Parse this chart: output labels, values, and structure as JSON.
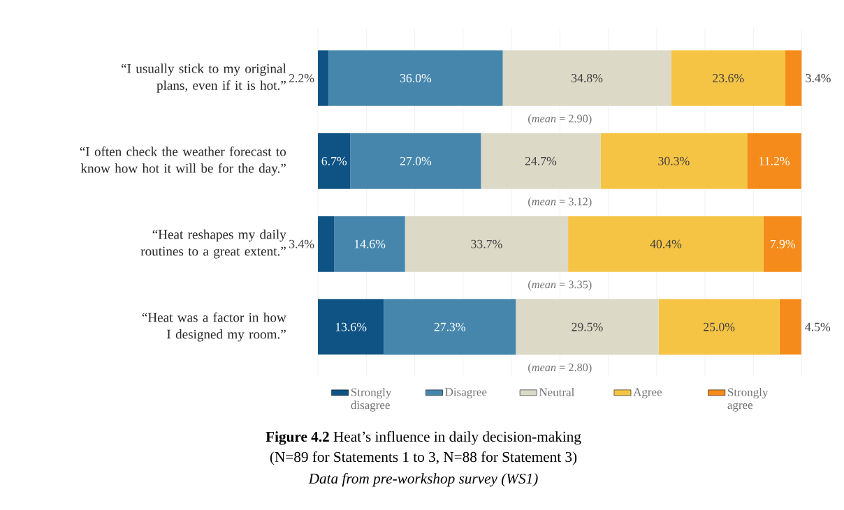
{
  "chart_data": {
    "type": "bar",
    "orientation": "horizontal",
    "stacked": true,
    "title": "**Figure 4.2** Heat’s influence in daily decision-making",
    "subtitle": "(N=89 for Statements 1 to 3, N=88 for Statement 3)",
    "categories": [
      "“I usually stick to my original plans, even if it is hot.”",
      "“I often check the weather forecast to know how hot it will be for the day.”",
      "“Heat reshapes my daily routines to a great extent.”",
      "“Heat was a factor in how I designed my room.”"
    ],
    "series": [
      {
        "name": "Strongly disagree",
        "color": "#0e5384",
        "values": [
          2.2,
          6.7,
          3.4,
          13.6
        ],
        "value_labels": [
          "2.2%",
          "6.7%",
          "3.4%",
          "13.6%"
        ]
      },
      {
        "name": "Disagree",
        "color": "#4686ad",
        "values": [
          36.0,
          27.0,
          14.6,
          27.3
        ],
        "value_labels": [
          "36.0%",
          "27.0%",
          "14.6%",
          "27.3%"
        ]
      },
      {
        "name": "Neutral",
        "color": "#dcd9c7",
        "values": [
          34.8,
          24.7,
          33.7,
          29.5
        ],
        "value_labels": [
          "34.8%",
          "24.7%",
          "33.7%",
          "29.5%"
        ]
      },
      {
        "name": "Agree",
        "color": "#f6c445",
        "values": [
          23.6,
          30.3,
          40.4,
          25.0
        ],
        "value_labels": [
          "23.6%",
          "30.3%",
          "40.4%",
          "25.0%"
        ]
      },
      {
        "name": "Strongly agree",
        "color": "#f58b1a",
        "values": [
          3.4,
          11.2,
          7.9,
          4.5
        ],
        "value_labels": [
          "3.4%",
          "11.2%",
          "7.9%",
          "4.5%"
        ]
      }
    ],
    "xlim": [
      0,
      100
    ],
    "grid": "x",
    "tick_labels": "y",
    "legend": "bottom",
    "annotations": [
      "(*mean* = 2.90)",
      "(*mean* = 3.12)",
      "(*mean* = 3.35)",
      "(*mean* = 2.80)",
      "Data from pre-workshop survey (WS1)"
    ]
  }
}
